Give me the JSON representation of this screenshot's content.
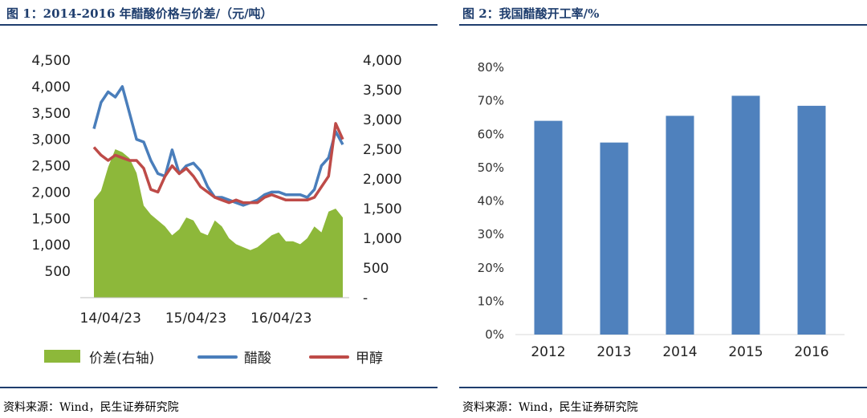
{
  "fig1": {
    "title": "图 1：2014-2016 年醋酸价格与价差/（元/吨）",
    "source": "资料来源：Wind，民生证券研究院"
  },
  "fig2": {
    "title": "图 2：我国醋酸开工率/%",
    "source": "资料来源：Wind，民生证券研究院"
  },
  "colors": {
    "spread": "#8db83a",
    "acetic": "#4a7ebb",
    "methanol": "#be4b48",
    "bar": "#4f81bd",
    "rule": "#1f3e6e"
  },
  "chart_data": [
    {
      "type": "line",
      "title": "图 1：2014-2016 年醋酸价格与价差/（元/吨）",
      "x_ticks": [
        "14/04/23",
        "15/04/23",
        "16/04/23"
      ],
      "x_range": [
        "2014-02",
        "2017-01"
      ],
      "y_left_ticks": [
        "500",
        "1,000",
        "1,500",
        "2,000",
        "2,500",
        "3,000",
        "3,500",
        "4,000",
        "4,500"
      ],
      "y_left_range": [
        0,
        4500
      ],
      "y_right_ticks": [
        "-",
        "500",
        "1,000",
        "1,500",
        "2,000",
        "2,500",
        "3,000",
        "3,500",
        "4,000"
      ],
      "y_right_range": [
        0,
        4000
      ],
      "legend": [
        "价差(右轴)",
        "醋酸",
        "甲醇"
      ],
      "legend_position": "bottom",
      "x": [
        "2014-02",
        "2014-03",
        "2014-04",
        "2014-05",
        "2014-06",
        "2014-07",
        "2014-08",
        "2014-09",
        "2014-10",
        "2014-11",
        "2014-12",
        "2015-01",
        "2015-02",
        "2015-03",
        "2015-04",
        "2015-05",
        "2015-06",
        "2015-07",
        "2015-08",
        "2015-09",
        "2015-10",
        "2015-11",
        "2015-12",
        "2016-01",
        "2016-02",
        "2016-03",
        "2016-04",
        "2016-05",
        "2016-06",
        "2016-07",
        "2016-08",
        "2016-09",
        "2016-10",
        "2016-11",
        "2016-12",
        "2017-01"
      ],
      "series": [
        {
          "name": "价差(右轴)",
          "axis": "right",
          "type": "area",
          "values": [
            1650,
            1800,
            2200,
            2500,
            2450,
            2350,
            2100,
            1550,
            1400,
            1300,
            1200,
            1050,
            1150,
            1350,
            1300,
            1100,
            1050,
            1300,
            1200,
            1000,
            900,
            850,
            800,
            850,
            950,
            1050,
            1100,
            950,
            950,
            900,
            1000,
            1200,
            1100,
            1450,
            1500,
            1350
          ]
        },
        {
          "name": "醋酸",
          "axis": "left",
          "type": "line",
          "values": [
            3200,
            3700,
            3900,
            3800,
            4000,
            3500,
            3000,
            2950,
            2600,
            2350,
            2300,
            2800,
            2350,
            2500,
            2550,
            2400,
            2100,
            1900,
            1900,
            1850,
            1800,
            1750,
            1800,
            1850,
            1950,
            2000,
            2000,
            1950,
            1950,
            1950,
            1900,
            2050,
            2500,
            2650,
            3150,
            2900
          ]
        },
        {
          "name": "甲醇",
          "axis": "left",
          "type": "line",
          "values": [
            2850,
            2700,
            2600,
            2700,
            2650,
            2600,
            2600,
            2450,
            2050,
            2000,
            2300,
            2500,
            2350,
            2450,
            2300,
            2100,
            2000,
            1900,
            1850,
            1800,
            1850,
            1800,
            1800,
            1800,
            1900,
            1950,
            1900,
            1850,
            1850,
            1850,
            1850,
            1900,
            2100,
            2300,
            3300,
            3000
          ]
        }
      ]
    },
    {
      "type": "bar",
      "title": "图 2：我国醋酸开工率/%",
      "categories": [
        "2012",
        "2013",
        "2014",
        "2015",
        "2016"
      ],
      "values": [
        64,
        57.5,
        65.5,
        71.5,
        68.5
      ],
      "ylim": [
        0,
        80
      ],
      "y_ticks": [
        "0%",
        "10%",
        "20%",
        "30%",
        "40%",
        "50%",
        "60%",
        "70%",
        "80%"
      ],
      "grid": false
    }
  ]
}
